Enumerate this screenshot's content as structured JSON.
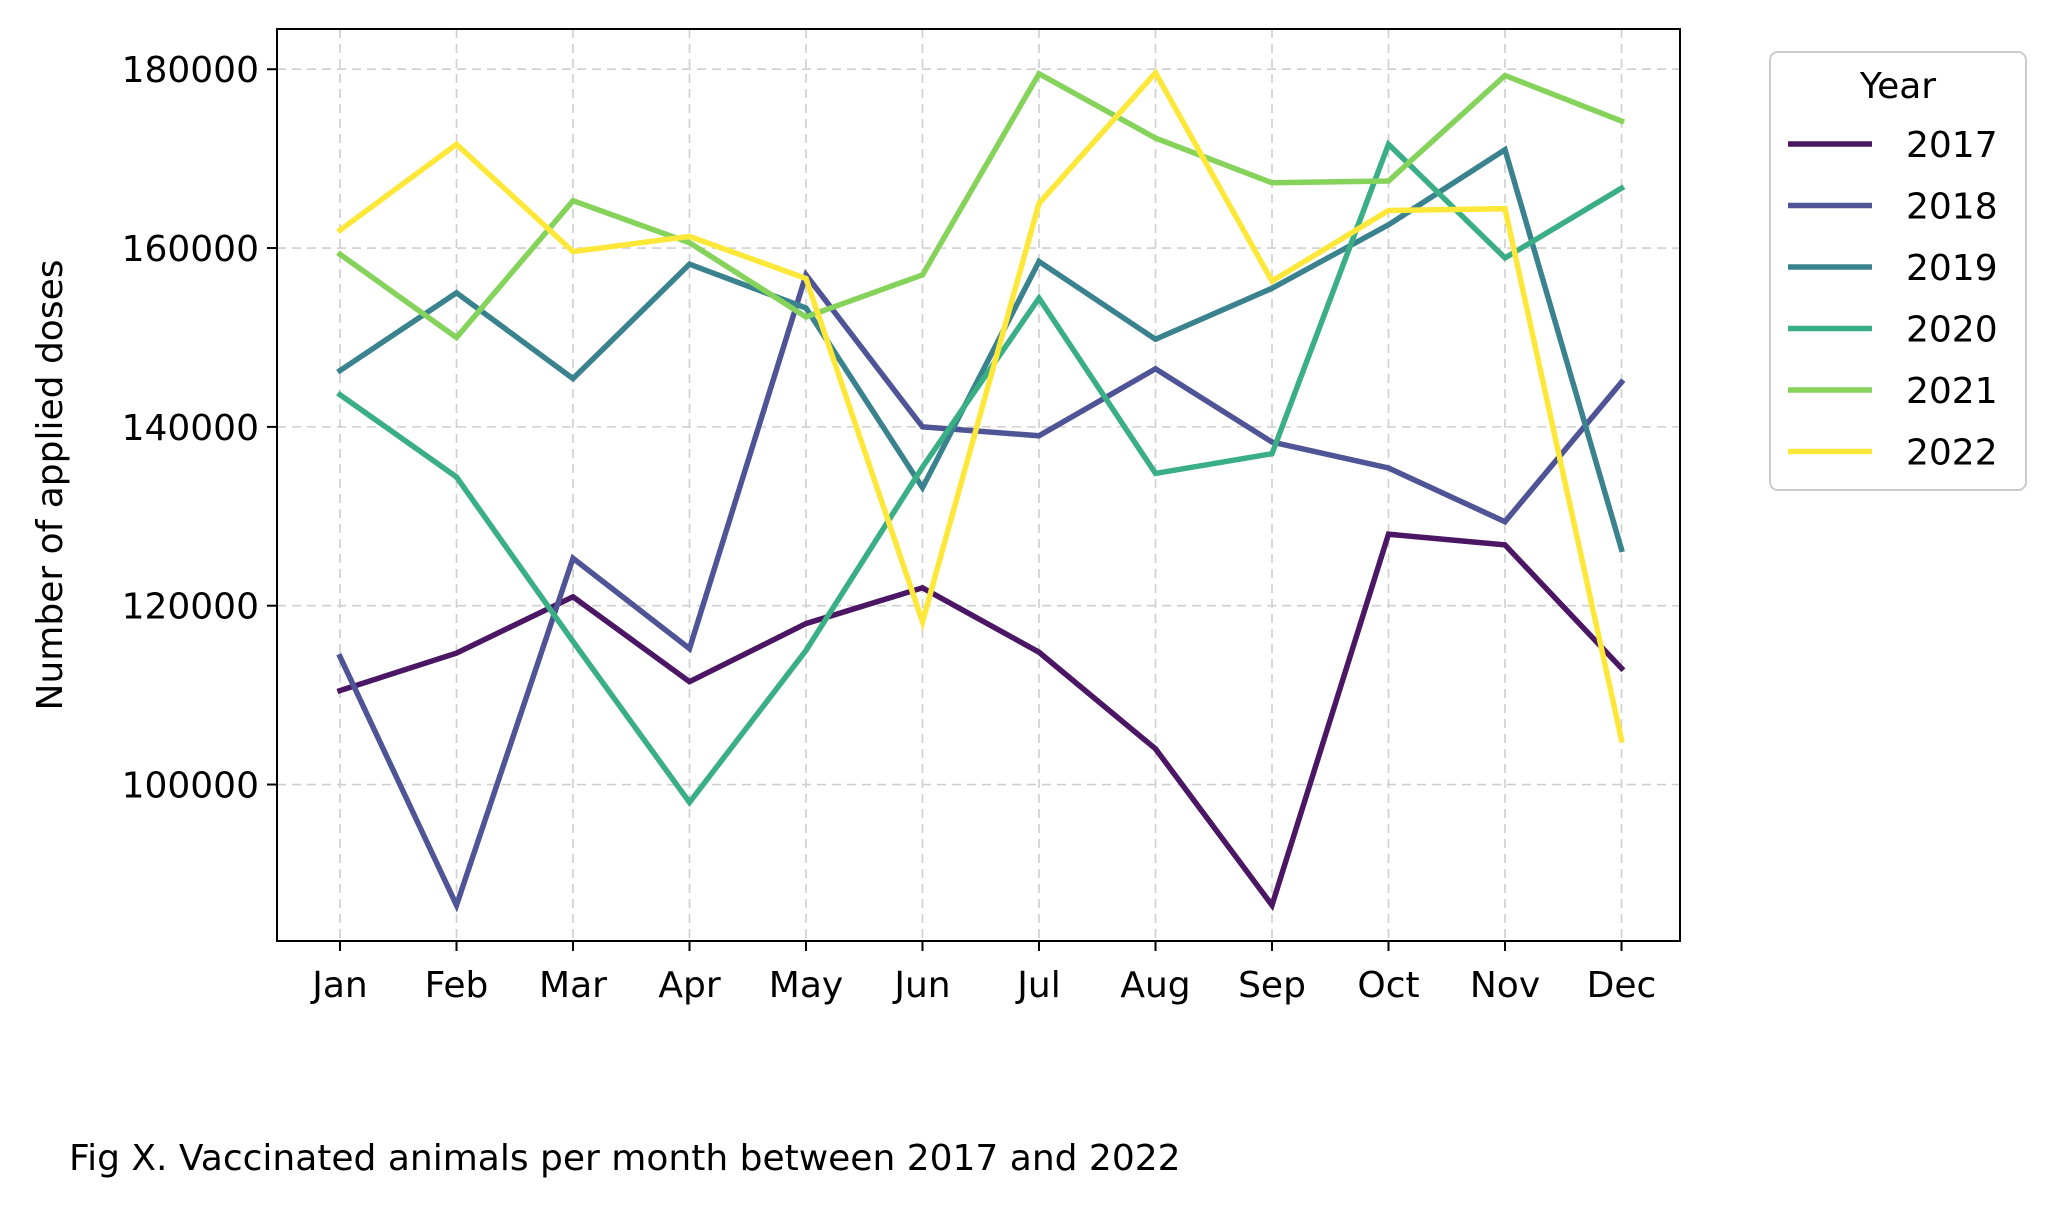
{
  "caption": "Fig X. Vaccinated animals per month between 2017 and 2022",
  "chart_data": {
    "type": "line",
    "title": "",
    "xlabel": "",
    "ylabel": "Number of applied doses",
    "categories": [
      "Jan",
      "Feb",
      "Mar",
      "Apr",
      "May",
      "Jun",
      "Jul",
      "Aug",
      "Sep",
      "Oct",
      "Nov",
      "Dec"
    ],
    "yticks": [
      100000,
      120000,
      140000,
      160000,
      180000
    ],
    "ylim": [
      82500,
      184500
    ],
    "grid": true,
    "legend": {
      "title": "Year",
      "placement": "outside-top-right"
    },
    "series": [
      {
        "name": "2017",
        "color": "#4b1664",
        "values": [
          110500,
          114700,
          121000,
          111500,
          118000,
          122000,
          114800,
          104000,
          86500,
          128000,
          126800,
          113000
        ]
      },
      {
        "name": "2018",
        "color": "#4e5495",
        "values": [
          114300,
          86500,
          125300,
          115200,
          157000,
          140000,
          139000,
          146500,
          138300,
          135400,
          129400,
          145000
        ]
      },
      {
        "name": "2019",
        "color": "#3a838e",
        "values": [
          146300,
          155000,
          145400,
          158200,
          153300,
          133200,
          158500,
          149800,
          155500,
          162600,
          171000,
          126300
        ]
      },
      {
        "name": "2020",
        "color": "#3aae84",
        "values": [
          143600,
          134400,
          116000,
          98000,
          115000,
          135500,
          154400,
          134800,
          137000,
          171600,
          158900,
          166700
        ]
      },
      {
        "name": "2021",
        "color": "#86d35c",
        "values": [
          159300,
          150000,
          165300,
          160600,
          152300,
          157000,
          179500,
          172300,
          167300,
          167500,
          179300,
          174200
        ]
      },
      {
        "name": "2022",
        "color": "#fde83a",
        "values": [
          162000,
          171600,
          159600,
          161300,
          156600,
          118200,
          165000,
          179600,
          156300,
          164200,
          164400,
          105000
        ]
      }
    ]
  }
}
